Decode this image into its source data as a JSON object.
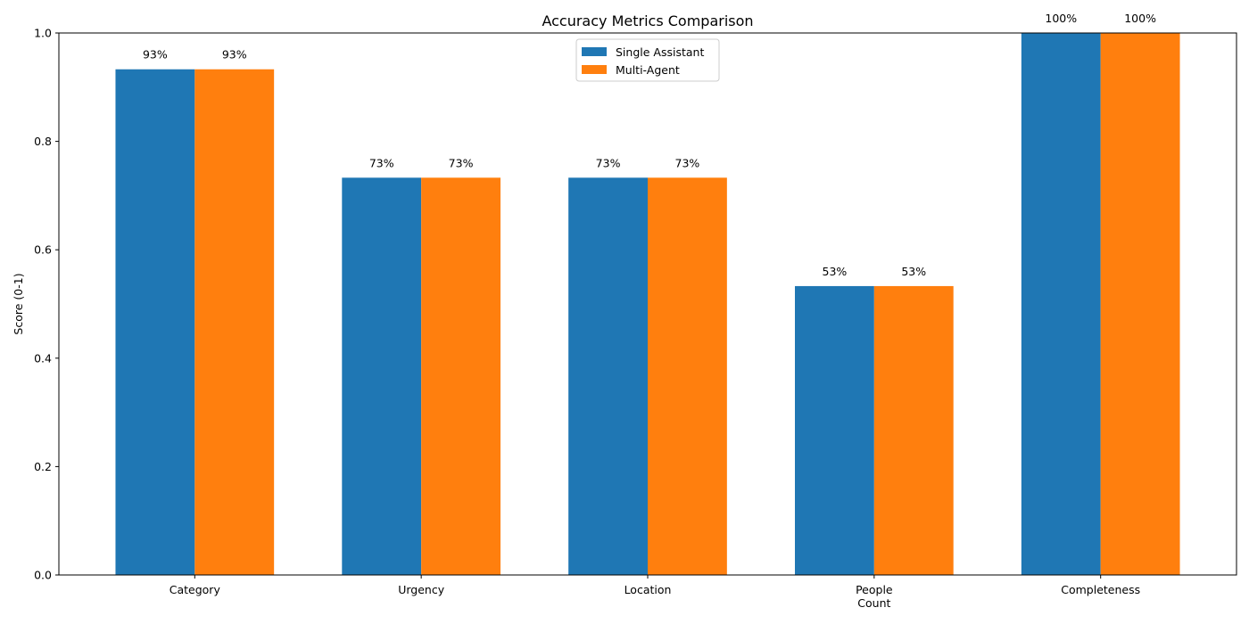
{
  "chart_data": {
    "type": "bar",
    "title": "Accuracy Metrics Comparison",
    "xlabel": "",
    "ylabel": "Score (0-1)",
    "ylim": [
      0,
      1.0
    ],
    "yticks": [
      "0.0",
      "0.2",
      "0.4",
      "0.6",
      "0.8",
      "1.0"
    ],
    "categories": [
      "Category",
      "Urgency",
      "Location",
      "People\nCount",
      "Completeness"
    ],
    "series": [
      {
        "name": "Single Assistant",
        "color": "#1f77b4",
        "values": [
          0.933,
          0.733,
          0.733,
          0.533,
          1.0
        ],
        "labels": [
          "93%",
          "73%",
          "73%",
          "53%",
          "100%"
        ]
      },
      {
        "name": "Multi-Agent",
        "color": "#ff7f0e",
        "values": [
          0.933,
          0.733,
          0.733,
          0.533,
          1.0
        ],
        "labels": [
          "93%",
          "73%",
          "73%",
          "53%",
          "100%"
        ]
      }
    ],
    "legend_position": "upper-center",
    "grid": false
  }
}
